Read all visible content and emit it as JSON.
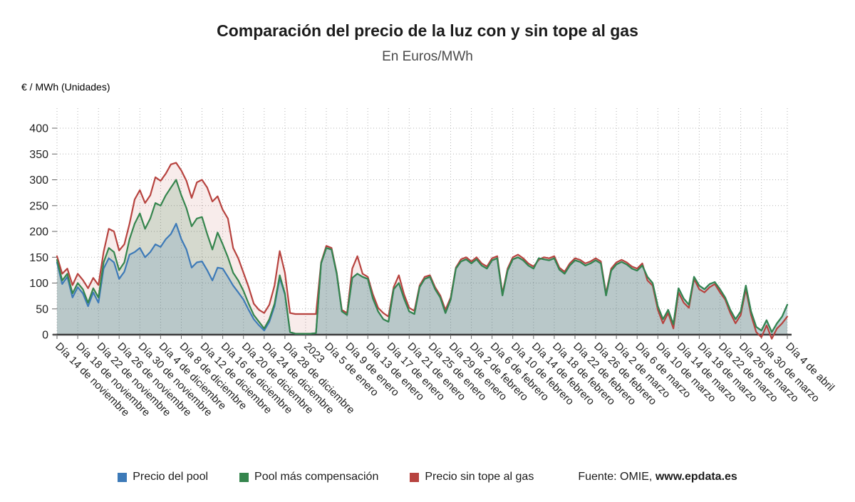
{
  "header": {
    "title": "Comparación del precio de la luz con y sin tope al gas",
    "subtitle": "En Euros/MWh"
  },
  "y_axis_unit": "€ / MWh (Unidades)",
  "source": {
    "prefix": "Fuente: OMIE, ",
    "site": "www.epdata.es"
  },
  "chart_data": {
    "type": "area",
    "title": "Comparación del precio de la luz con y sin tope al gas",
    "subtitle": "En Euros/MWh",
    "ylabel": "€ / MWh (Unidades)",
    "xlabel": "",
    "grid": "dotted",
    "legend_position": "bottom",
    "y_ticks": [
      0,
      50,
      100,
      150,
      200,
      250,
      300,
      350,
      400
    ],
    "ylim": [
      -10,
      440
    ],
    "x_tick_labels": [
      "Día 14 de noviembre",
      "Día 18 de noviembre",
      "Día 22 de noviembre",
      "Día 26 de noviembre",
      "Día 30 de noviembre",
      "Día 4 de diciembre",
      "Día 8 de diciembre",
      "Día 12 de diciembre",
      "Día 16 de diciembre",
      "Día 20 de diciembre",
      "Día 24 de diciembre",
      "Día 28 de diciembre",
      "2023",
      "Día 5 de enero",
      "Día 9 de enero",
      "Día 13 de enero",
      "Día 17 de enero",
      "Día 21 de enero",
      "Día 25 de enero",
      "Día 29 de enero",
      "Día 2 de febrero",
      "Día 6 de febrero",
      "Día 10 de febrero",
      "Día 14 de febrero",
      "Día 18 de febrero",
      "Día 22 de febrero",
      "Día 26 de febrero",
      "Día 2 de marzo",
      "Día 6 de marzo",
      "Día 10 de marzo",
      "Día 14 de marzo",
      "Día 18 de marzo",
      "Día 22 de marzo",
      "Día 26 de marzo",
      "Día 30 de marzo",
      "Día 4 de abril"
    ],
    "x_tick_indices": [
      0,
      4,
      8,
      12,
      16,
      20,
      24,
      28,
      32,
      36,
      40,
      44,
      48,
      52,
      56,
      60,
      64,
      68,
      72,
      76,
      80,
      84,
      88,
      92,
      96,
      100,
      104,
      108,
      112,
      116,
      120,
      124,
      128,
      132,
      136,
      141
    ],
    "series": [
      {
        "name": "Precio del pool",
        "color": "#3d7ab8",
        "fill": "rgba(61,122,184,0.18)",
        "values": [
          140,
          98,
          112,
          72,
          92,
          80,
          55,
          82,
          62,
          128,
          148,
          140,
          108,
          122,
          155,
          160,
          168,
          150,
          160,
          175,
          170,
          185,
          195,
          215,
          185,
          165,
          130,
          140,
          142,
          125,
          105,
          130,
          128,
          112,
          95,
          82,
          68,
          48,
          30,
          18,
          8,
          25,
          55,
          110,
          78,
          5,
          2,
          2,
          2,
          2,
          3,
          138,
          168,
          165,
          118,
          45,
          38,
          110,
          118,
          112,
          108,
          70,
          45,
          30,
          25,
          88,
          100,
          70,
          45,
          40,
          92,
          108,
          112,
          88,
          72,
          42,
          68,
          128,
          142,
          146,
          138,
          146,
          134,
          128,
          144,
          148,
          76,
          124,
          146,
          150,
          144,
          134,
          128,
          148,
          146,
          144,
          148,
          126,
          118,
          134,
          144,
          141,
          134,
          138,
          144,
          138,
          76,
          124,
          136,
          141,
          136,
          128,
          124,
          134,
          112,
          100,
          55,
          30,
          48,
          20,
          90,
          70,
          58,
          112,
          95,
          88,
          98,
          102,
          88,
          72,
          48,
          30,
          45,
          95,
          45,
          15,
          8,
          28,
          5,
          22,
          35,
          58
        ]
      },
      {
        "name": "Pool más compensación",
        "color": "#35854d",
        "fill": "rgba(53,133,77,0.18)",
        "values": [
          145,
          105,
          118,
          80,
          100,
          88,
          62,
          90,
          72,
          140,
          168,
          160,
          125,
          140,
          185,
          215,
          235,
          205,
          225,
          255,
          250,
          270,
          285,
          300,
          270,
          245,
          210,
          225,
          228,
          195,
          165,
          198,
          175,
          150,
          120,
          105,
          85,
          60,
          38,
          25,
          12,
          30,
          60,
          115,
          80,
          5,
          2,
          2,
          2,
          2,
          3,
          138,
          168,
          165,
          118,
          45,
          38,
          110,
          118,
          112,
          108,
          70,
          45,
          30,
          25,
          88,
          100,
          70,
          45,
          40,
          92,
          108,
          112,
          88,
          72,
          42,
          68,
          128,
          142,
          146,
          138,
          146,
          134,
          128,
          144,
          148,
          76,
          124,
          146,
          150,
          144,
          134,
          128,
          148,
          146,
          144,
          148,
          126,
          118,
          134,
          144,
          141,
          134,
          138,
          144,
          138,
          76,
          124,
          136,
          141,
          136,
          128,
          124,
          134,
          112,
          100,
          55,
          30,
          48,
          20,
          90,
          70,
          58,
          112,
          95,
          88,
          98,
          102,
          88,
          72,
          48,
          30,
          45,
          95,
          45,
          15,
          8,
          28,
          5,
          22,
          35,
          58
        ]
      },
      {
        "name": "Precio sin tope al gas",
        "color": "#b7433f",
        "fill": "rgba(183,67,63,0.10)",
        "values": [
          152,
          118,
          128,
          96,
          118,
          106,
          90,
          110,
          96,
          160,
          205,
          200,
          163,
          175,
          215,
          262,
          280,
          255,
          270,
          305,
          298,
          312,
          330,
          333,
          318,
          298,
          265,
          295,
          300,
          285,
          258,
          268,
          242,
          225,
          168,
          148,
          120,
          92,
          60,
          48,
          42,
          58,
          95,
          162,
          120,
          42,
          40,
          40,
          40,
          40,
          40,
          140,
          172,
          168,
          120,
          48,
          42,
          128,
          152,
          118,
          112,
          78,
          52,
          42,
          35,
          92,
          115,
          78,
          52,
          46,
          95,
          112,
          115,
          92,
          76,
          48,
          72,
          130,
          146,
          150,
          142,
          150,
          138,
          132,
          148,
          152,
          80,
          128,
          150,
          155,
          148,
          138,
          132,
          145,
          150,
          148,
          152,
          130,
          122,
          138,
          148,
          145,
          138,
          142,
          148,
          142,
          80,
          128,
          140,
          145,
          140,
          132,
          128,
          138,
          105,
          95,
          48,
          22,
          42,
          12,
          82,
          62,
          52,
          108,
          88,
          82,
          92,
          98,
          82,
          68,
          42,
          22,
          38,
          88,
          38,
          5,
          -5,
          18,
          -8,
          12,
          22,
          35
        ]
      }
    ]
  }
}
